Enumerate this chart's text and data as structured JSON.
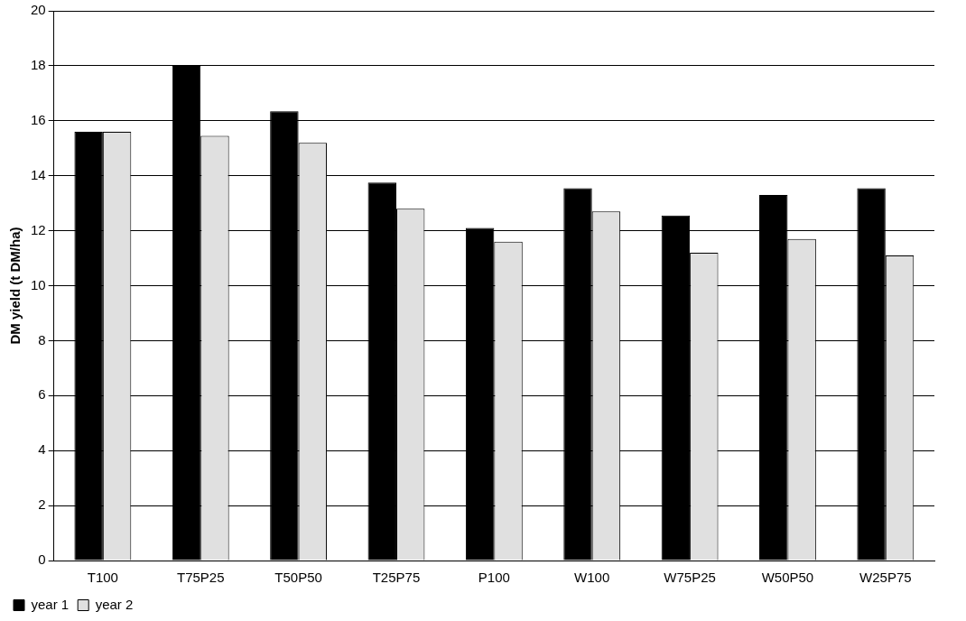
{
  "chart_data": {
    "type": "bar",
    "ylabel": "DM yield (t DM/ha)",
    "categories": [
      "T100",
      "T75P25",
      "T50P50",
      "T25P75",
      "P100",
      "W100",
      "W75P25",
      "W50P50",
      "W25P75"
    ],
    "series": [
      {
        "name": "year 1",
        "color": "#000000",
        "values": [
          15.6,
          18.0,
          16.35,
          13.75,
          12.1,
          13.55,
          12.55,
          13.3,
          13.55
        ]
      },
      {
        "name": "year 2",
        "color": "#e0e0e0",
        "values": [
          15.6,
          15.45,
          15.2,
          12.8,
          11.6,
          12.7,
          11.2,
          11.7,
          11.1
        ]
      }
    ],
    "ylim": [
      0,
      20
    ],
    "yticks": [
      0,
      2,
      4,
      6,
      8,
      10,
      12,
      14,
      16,
      18,
      20
    ],
    "grid": "y",
    "legend": "bottom left"
  }
}
